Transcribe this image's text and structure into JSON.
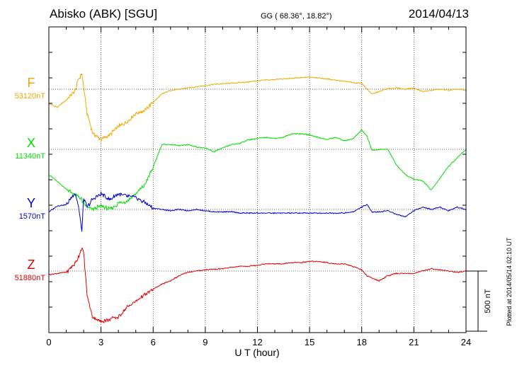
{
  "header": {
    "station": "Abisko (ABK)  [SGU]",
    "coords": "GG ( 68.36°,  18.82°)",
    "date": "2014/04/13"
  },
  "footer": {
    "plotted": "Plotted at 2014/05/14 02:10 UT"
  },
  "chart_data": {
    "type": "line",
    "xlabel": "U T (hour)",
    "xlim": [
      0,
      24
    ],
    "x_ticks": [
      "0",
      "3",
      "6",
      "9",
      "12",
      "15",
      "18",
      "21",
      "24"
    ],
    "scale_bar_label": "500 nT",
    "scale_bar_nT": 500,
    "x": [
      0,
      0.5,
      1,
      1.5,
      1.7,
      1.9,
      2.0,
      2.2,
      2.5,
      3,
      3.5,
      4,
      4.5,
      5,
      5.5,
      6,
      6.5,
      7,
      7.5,
      8,
      8.5,
      9,
      9.5,
      10,
      10.5,
      11,
      11.5,
      12,
      12.5,
      13,
      13.5,
      14,
      14.5,
      15,
      15.5,
      16,
      16.5,
      17,
      17.5,
      18,
      18.3,
      18.6,
      19,
      19.5,
      20,
      20.5,
      21,
      21.5,
      22,
      22.5,
      23,
      23.5,
      24
    ],
    "series": [
      {
        "name": "F",
        "baseline_label": "53120nT",
        "color": "#f0a800",
        "values": [
          -120,
          -150,
          -90,
          -20,
          80,
          130,
          20,
          -200,
          -360,
          -420,
          -380,
          -310,
          -270,
          -200,
          -180,
          -110,
          -40,
          -10,
          0,
          10,
          20,
          30,
          40,
          45,
          50,
          55,
          60,
          70,
          75,
          80,
          85,
          90,
          95,
          100,
          95,
          85,
          75,
          65,
          55,
          50,
          0,
          -40,
          -20,
          5,
          10,
          0,
          10,
          -20,
          -10,
          0,
          -10,
          0,
          -10
        ]
      },
      {
        "name": "X",
        "baseline_label": "11340nT",
        "color": "#00dd00",
        "values": [
          -210,
          -270,
          -330,
          -380,
          -390,
          -420,
          -450,
          -480,
          -500,
          -470,
          -500,
          -450,
          -430,
          -370,
          -300,
          -150,
          40,
          40,
          30,
          40,
          20,
          10,
          -20,
          10,
          40,
          50,
          80,
          90,
          100,
          90,
          100,
          130,
          130,
          120,
          100,
          80,
          100,
          70,
          90,
          160,
          110,
          -10,
          0,
          0,
          -130,
          -210,
          -250,
          -260,
          -340,
          -240,
          -140,
          -70,
          0
        ]
      },
      {
        "name": "Y",
        "baseline_label": "1570nT",
        "color": "#0000cc",
        "values": [
          -20,
          30,
          40,
          140,
          30,
          -180,
          90,
          20,
          80,
          130,
          80,
          130,
          110,
          100,
          60,
          10,
          0,
          -10,
          0,
          -10,
          0,
          -10,
          -20,
          -20,
          -20,
          -30,
          -30,
          -30,
          -30,
          -30,
          -30,
          -30,
          -30,
          -30,
          -30,
          -30,
          -30,
          -30,
          -20,
          20,
          40,
          -20,
          -20,
          -10,
          -40,
          -60,
          -10,
          20,
          0,
          20,
          -10,
          20,
          0
        ]
      },
      {
        "name": "Z",
        "baseline_label": "51880nT",
        "color": "#dd0000",
        "values": [
          -30,
          -20,
          -10,
          60,
          120,
          190,
          150,
          -200,
          -380,
          -420,
          -400,
          -380,
          -300,
          -250,
          -200,
          -150,
          -110,
          -80,
          -40,
          -10,
          0,
          10,
          15,
          20,
          30,
          40,
          40,
          50,
          60,
          60,
          60,
          70,
          70,
          80,
          80,
          70,
          60,
          60,
          40,
          10,
          -40,
          -60,
          -80,
          -40,
          -20,
          -20,
          -20,
          0,
          20,
          10,
          0,
          -10,
          0
        ]
      }
    ]
  }
}
